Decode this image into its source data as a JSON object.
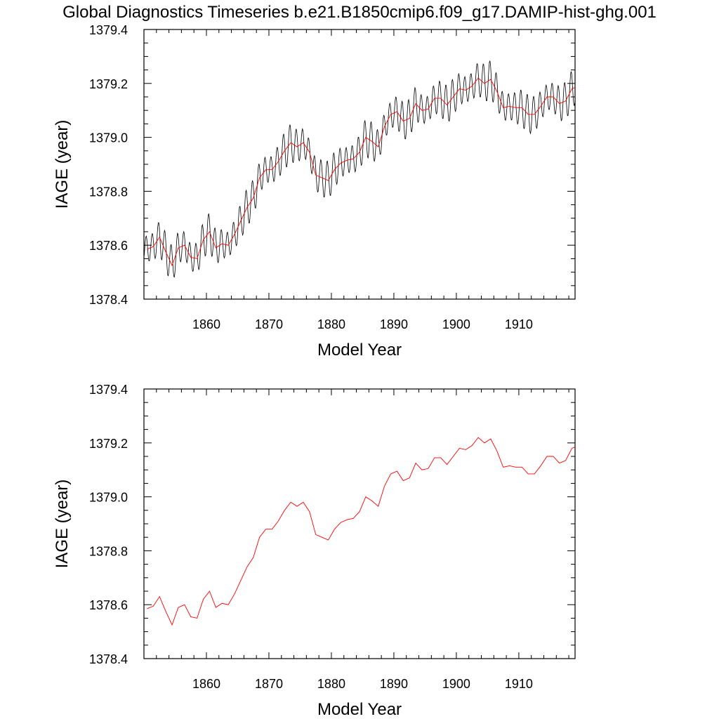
{
  "title": "Global Diagnostics Timeseries b.e21.B1850cmip6.f09_g17.DAMIP-hist-ghg.001",
  "colors": {
    "monthly": "#000000",
    "annual": "#ff0000"
  },
  "chart_data": [
    {
      "type": "line",
      "xlabel": "Model Year",
      "ylabel": "IAGE (year)",
      "xlim": [
        1850,
        1919
      ],
      "ylim": [
        1378.4,
        1379.4
      ],
      "xticks": [
        "1860",
        "1870",
        "1880",
        "1890",
        "1900",
        "1910"
      ],
      "yticks": [
        "1378.4",
        "1378.6",
        "1378.8",
        "1379.0",
        "1379.2",
        "1379.4"
      ],
      "grid": false,
      "legend": "none",
      "series": [
        {
          "id": "monthly",
          "monthly_seasonal_amplitude": 0.06
        },
        {
          "id": "annual"
        }
      ]
    },
    {
      "type": "line",
      "xlabel": "Model Year",
      "ylabel": "IAGE (year)",
      "xlim": [
        1850,
        1919
      ],
      "ylim": [
        1378.4,
        1379.4
      ],
      "xticks": [
        "1860",
        "1870",
        "1880",
        "1890",
        "1900",
        "1910"
      ],
      "yticks": [
        "1378.4",
        "1378.6",
        "1378.8",
        "1379.0",
        "1379.2",
        "1379.4"
      ],
      "grid": false,
      "legend": "none",
      "series": [
        {
          "id": "annual"
        }
      ]
    }
  ],
  "annual_series": {
    "x": [
      1850.5,
      1851.5,
      1852.5,
      1853.5,
      1854.5,
      1855.5,
      1856.5,
      1857.5,
      1858.5,
      1859.5,
      1860.5,
      1861.5,
      1862.5,
      1863.5,
      1864.5,
      1865.5,
      1866.5,
      1867.5,
      1868.5,
      1869.5,
      1870.5,
      1871.5,
      1872.5,
      1873.5,
      1874.5,
      1875.5,
      1876.5,
      1877.5,
      1878.5,
      1879.5,
      1880.5,
      1881.5,
      1882.5,
      1883.5,
      1884.5,
      1885.5,
      1886.5,
      1887.5,
      1888.5,
      1889.5,
      1890.5,
      1891.5,
      1892.5,
      1893.5,
      1894.5,
      1895.5,
      1896.5,
      1897.5,
      1898.5,
      1899.5,
      1900.5,
      1901.5,
      1902.5,
      1903.5,
      1904.5,
      1905.5,
      1906.5,
      1907.5,
      1908.5,
      1909.5,
      1910.5,
      1911.5,
      1912.5,
      1913.5,
      1914.5,
      1915.5,
      1916.5,
      1917.5,
      1918.5,
      1919.0
    ],
    "y": [
      1378.585,
      1378.595,
      1378.63,
      1378.575,
      1378.525,
      1378.59,
      1378.6,
      1378.555,
      1378.55,
      1378.62,
      1378.65,
      1378.59,
      1378.605,
      1378.6,
      1378.64,
      1378.69,
      1378.74,
      1378.775,
      1378.85,
      1378.88,
      1378.88,
      1378.91,
      1378.95,
      1378.98,
      1378.965,
      1378.98,
      1378.945,
      1378.86,
      1378.85,
      1378.84,
      1378.88,
      1378.905,
      1378.915,
      1378.92,
      1378.945,
      1379.0,
      1378.985,
      1378.965,
      1379.04,
      1379.085,
      1379.095,
      1379.06,
      1379.07,
      1379.125,
      1379.1,
      1379.105,
      1379.145,
      1379.145,
      1379.12,
      1379.15,
      1379.18,
      1379.175,
      1379.19,
      1379.22,
      1379.2,
      1379.215,
      1379.17,
      1379.11,
      1379.115,
      1379.11,
      1379.11,
      1379.085,
      1379.085,
      1379.115,
      1379.15,
      1379.15,
      1379.125,
      1379.135,
      1379.18,
      1379.185
    ]
  }
}
